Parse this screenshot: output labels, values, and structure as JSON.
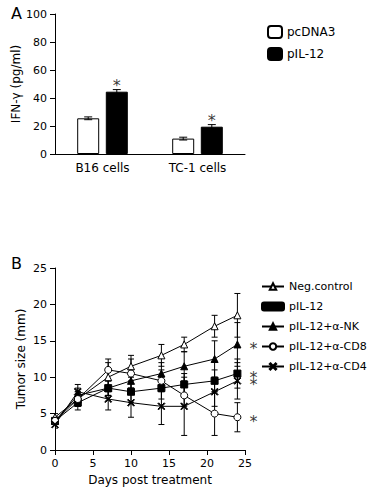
{
  "chart_data": [
    {
      "type": "bar",
      "title": "A",
      "y_label": "IFN-γ (pg/ml)",
      "categories": [
        "B16 cells",
        "TC-1 cells"
      ],
      "series": [
        {
          "name": "pcDNA3",
          "color": "#ffffff",
          "values": [
            25.5,
            11
          ],
          "errors": [
            1,
            1
          ]
        },
        {
          "name": "pIL-12",
          "color": "#000000",
          "values": [
            44.5,
            19.5
          ],
          "errors": [
            1.5,
            1.5
          ]
        }
      ],
      "ylim": [
        0,
        100
      ],
      "yticks": [
        0,
        20,
        40,
        60,
        80,
        100
      ],
      "legend": "right",
      "annotations": [
        {
          "text": "*",
          "series": "pIL-12",
          "category": "B16 cells"
        },
        {
          "text": "*",
          "series": "pIL-12",
          "category": "TC-1 cells"
        }
      ]
    },
    {
      "type": "line",
      "title": "B",
      "x_label": "Days post treatment",
      "y_label": "Tumor size (mm)",
      "x": [
        0,
        3,
        7,
        10,
        14,
        17,
        21,
        24
      ],
      "series": [
        {
          "name": "Neg.control",
          "color": "#000000",
          "marker": "open-triangle",
          "values": [
            4.5,
            7,
            10,
            11.5,
            13,
            14.5,
            17,
            18.5
          ],
          "errors": [
            0.5,
            1,
            2,
            1.5,
            1.5,
            1,
            1.5,
            3
          ]
        },
        {
          "name": "pIL-12",
          "color": "#000000",
          "marker": "square",
          "values": [
            4,
            6.5,
            8.5,
            8,
            8.5,
            9,
            9.5,
            10.5
          ],
          "errors": [
            0.5,
            1,
            1,
            1.5,
            1.5,
            1.5,
            1.5,
            2
          ]
        },
        {
          "name": "pIL-12+α-NK",
          "color": "#000000",
          "marker": "triangle",
          "values": [
            4,
            7.5,
            8.5,
            9.5,
            10.5,
            11.5,
            12.5,
            14.5
          ],
          "errors": [
            0.5,
            1,
            1,
            1.5,
            1.5,
            2,
            2.5,
            3
          ]
        },
        {
          "name": "pIL-12+α-CD8",
          "color": "#000000",
          "marker": "open-circle",
          "values": [
            4,
            7,
            11,
            10.5,
            9.5,
            7.5,
            5,
            4.5
          ],
          "errors": [
            0.5,
            1,
            1.5,
            2,
            1.5,
            1.5,
            3,
            2
          ]
        },
        {
          "name": "pIL-12+α-CD4",
          "color": "#000000",
          "marker": "x",
          "values": [
            3.5,
            8,
            7,
            6.5,
            6,
            6,
            8,
            9.5
          ],
          "errors": [
            0.5,
            1,
            1.5,
            2,
            2.5,
            4,
            2,
            2.5
          ]
        }
      ],
      "xlim": [
        0,
        25
      ],
      "xticks": [
        0,
        5,
        10,
        15,
        20,
        25
      ],
      "ylim": [
        0,
        25
      ],
      "yticks": [
        0,
        5,
        10,
        15,
        20,
        25
      ],
      "legend": "right",
      "annotations": [
        {
          "text": "*",
          "series": "pIL-12+α-NK"
        },
        {
          "text": "*",
          "series": "pIL-12"
        },
        {
          "text": "*",
          "series": "pIL-12+α-CD8"
        },
        {
          "text": "*",
          "series": "pIL-12+α-CD4"
        }
      ]
    }
  ]
}
